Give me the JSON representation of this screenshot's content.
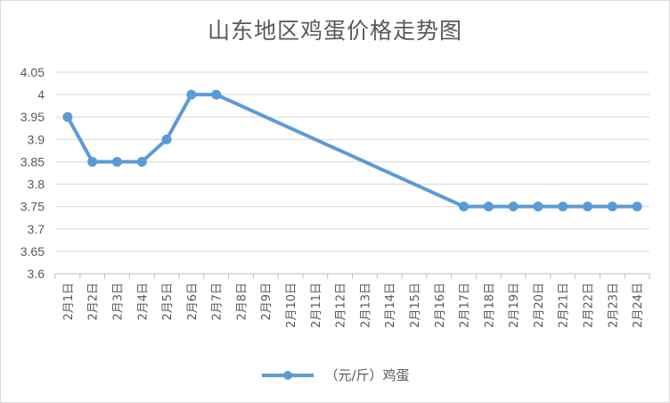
{
  "chart_data": {
    "type": "line",
    "title": "山东地区鸡蛋价格走势图",
    "categories": [
      "2月1日",
      "2月2日",
      "2月3日",
      "2月4日",
      "2月5日",
      "2月6日",
      "2月7日",
      "2月8日",
      "2月9日",
      "2月10日",
      "2月11日",
      "2月12日",
      "2月13日",
      "2月14日",
      "2月15日",
      "2月16日",
      "2月17日",
      "2月18日",
      "2月19日",
      "2月20日",
      "2月21日",
      "2月22日",
      "2月23日",
      "2月24日"
    ],
    "series": [
      {
        "name": "（元/斤）鸡蛋",
        "values": [
          3.95,
          3.85,
          3.85,
          3.85,
          3.9,
          4.0,
          4.0,
          null,
          null,
          null,
          null,
          null,
          null,
          null,
          null,
          null,
          3.75,
          3.75,
          3.75,
          3.75,
          3.75,
          3.75,
          3.75,
          3.75
        ],
        "color": "#5b9bd5"
      }
    ],
    "ylim": [
      3.6,
      4.05
    ],
    "yticks": [
      "3.6",
      "3.65",
      "3.7",
      "3.75",
      "3.8",
      "3.85",
      "3.9",
      "3.95",
      "4",
      "4.05"
    ],
    "xlabel": "",
    "ylabel": "",
    "grid": true,
    "legend": "bottom",
    "gaps": "connected"
  }
}
